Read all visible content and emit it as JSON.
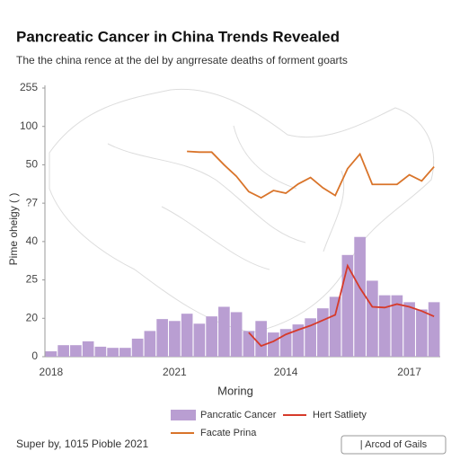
{
  "chart_data": {
    "type": "bar",
    "title": "Pancreatic Cancer in China Trends Revealed",
    "subtitle": "The the china rence at the del by angrresate deaths of forment goarts",
    "y_label": "Pime oheigy ( )",
    "x_label": "Moring",
    "footer_note": "Super by, 1015 Pioble 2021",
    "button_label": "| Arcod of Gails",
    "categories": [
      "2018",
      null,
      null,
      null,
      null,
      null,
      null,
      null,
      null,
      null,
      "2021",
      null,
      null,
      null,
      null,
      null,
      null,
      null,
      null,
      "2014",
      null,
      null,
      null,
      null,
      null,
      null,
      null,
      null,
      null,
      "2017",
      null,
      null
    ],
    "ylim": [
      0,
      7
    ],
    "yticks": [
      0,
      {
        "value": 1,
        "label": "20"
      },
      {
        "value": 2,
        "label": "25"
      },
      {
        "value": 3,
        "label": "40"
      },
      {
        "value": 4,
        "label": "?7"
      },
      {
        "value": 5,
        "label": "50"
      },
      {
        "value": 6,
        "label": "100"
      },
      {
        "value": 7,
        "label": "255"
      }
    ],
    "series": [
      {
        "name": "Pancratic Cancer",
        "type": "bar",
        "color": "#b99ed2",
        "values": [
          0.14,
          0.3,
          0.3,
          0.4,
          0.26,
          0.23,
          0.23,
          0.47,
          0.67,
          0.98,
          0.93,
          1.12,
          0.86,
          1.05,
          1.3,
          1.16,
          0.67,
          0.93,
          0.63,
          0.72,
          0.84,
          1.0,
          1.26,
          1.56,
          2.65,
          3.12,
          1.98,
          1.6,
          1.6,
          1.42,
          1.23,
          1.42
        ]
      },
      {
        "name": "Hert Satliety",
        "type": "line",
        "color": "#d63a2a",
        "values": [
          null,
          null,
          null,
          null,
          null,
          null,
          null,
          null,
          null,
          null,
          null,
          null,
          null,
          null,
          null,
          null,
          0.63,
          0.28,
          0.4,
          0.58,
          0.7,
          0.81,
          0.95,
          1.09,
          2.37,
          1.79,
          1.3,
          1.28,
          1.37,
          1.3,
          1.19,
          1.05
        ]
      },
      {
        "name": "Facate Prina",
        "type": "line",
        "color": "#d9742a",
        "values": [
          null,
          null,
          null,
          null,
          null,
          null,
          null,
          null,
          null,
          null,
          null,
          5.35,
          5.33,
          5.33,
          5.0,
          4.7,
          4.3,
          4.14,
          4.33,
          4.26,
          4.5,
          4.67,
          4.4,
          4.2,
          4.9,
          5.28,
          4.49,
          4.49,
          4.49,
          4.74,
          4.58,
          4.95
        ]
      }
    ]
  }
}
